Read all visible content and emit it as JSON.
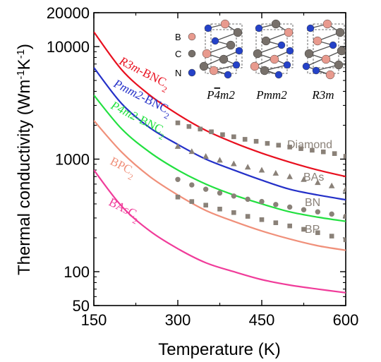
{
  "chart_data": {
    "type": "line",
    "xlabel": "Temperature (K)",
    "ylabel": "Thermal conductivity (Wm-1K-1)",
    "ylabel_parts": {
      "main": "Thermal conductivity (Wm",
      "exp1": "-1",
      "mid": "K",
      "exp2": "-1",
      "close": ")"
    },
    "xlim": [
      150,
      600
    ],
    "ylim": [
      50,
      20000
    ],
    "yscale": "log",
    "xticks": [
      150,
      300,
      450,
      600
    ],
    "xtick_labels": [
      "150",
      "300",
      "450",
      "600"
    ],
    "yticks": [
      50,
      100,
      1000,
      10000,
      20000
    ],
    "ytick_labels": [
      "50",
      "100",
      "1000",
      "10000",
      "20000"
    ],
    "grid": false,
    "series": [
      {
        "name": "R3m-BNC2",
        "label_italic": "R3m",
        "label_rest": "-BNC",
        "label_sub": "2",
        "color": "#e8101f",
        "style": "line",
        "x": [
          150,
          200,
          250,
          300,
          350,
          400,
          450,
          500,
          550,
          600
        ],
        "y": [
          13500,
          6200,
          3700,
          2500,
          1800,
          1400,
          1130,
          940,
          800,
          700
        ]
      },
      {
        "name": "Pmm2-BNC2",
        "label_italic": "Pmm2",
        "label_rest": "-BNC",
        "label_sub": "2",
        "color": "#2430c8",
        "style": "line",
        "x": [
          150,
          200,
          250,
          300,
          350,
          400,
          450,
          500,
          550,
          600
        ],
        "y": [
          6500,
          3100,
          1900,
          1350,
          1000,
          800,
          650,
          540,
          480,
          435
        ]
      },
      {
        "name": "P4m2-BNC2",
        "label_italic": "P4m2",
        "label_rest": "-BNC",
        "label_sub": "2",
        "color": "#22e040",
        "style": "line",
        "x": [
          150,
          200,
          250,
          300,
          350,
          400,
          450,
          500,
          550,
          600
        ],
        "y": [
          3700,
          1850,
          1150,
          800,
          600,
          480,
          400,
          340,
          305,
          280
        ]
      },
      {
        "name": "BPC2",
        "label_italic": "",
        "label_rest": "BPC",
        "label_sub": "2",
        "color": "#f0907a",
        "style": "line",
        "x": [
          150,
          200,
          250,
          300,
          350,
          400,
          450,
          500,
          550,
          600
        ],
        "y": [
          2200,
          1150,
          700,
          480,
          350,
          280,
          230,
          195,
          170,
          155
        ]
      },
      {
        "name": "BAsC2",
        "label_italic": "",
        "label_rest": "BAsC",
        "label_sub": "2",
        "color": "#f03c9a",
        "style": "line",
        "x": [
          150,
          200,
          250,
          300,
          350,
          400,
          450,
          500,
          550,
          600
        ],
        "y": [
          800,
          380,
          230,
          160,
          120,
          100,
          85,
          76,
          70,
          65
        ]
      },
      {
        "name": "Diamond",
        "label_italic": "",
        "label_rest": "Diamond",
        "label_sub": "",
        "color": "#8a8178",
        "style": "square",
        "x": [
          300,
          320,
          340,
          360,
          380,
          400,
          420,
          440,
          460,
          480,
          500,
          520,
          540,
          560,
          580,
          600
        ],
        "y": [
          2100,
          1950,
          1850,
          1750,
          1650,
          1580,
          1500,
          1440,
          1380,
          1330,
          1280,
          1240,
          1200,
          1160,
          1120,
          1060
        ]
      },
      {
        "name": "BAs",
        "label_italic": "",
        "label_rest": "BAs",
        "label_sub": "",
        "color": "#8a8178",
        "style": "triangle",
        "x": [
          300,
          325,
          350,
          375,
          400,
          425,
          450,
          475,
          500,
          525,
          550,
          575,
          600
        ],
        "y": [
          1300,
          1170,
          1060,
          980,
          910,
          850,
          800,
          750,
          700,
          660,
          620,
          580,
          540
        ]
      },
      {
        "name": "BN",
        "label_italic": "",
        "label_rest": "BN",
        "label_sub": "",
        "color": "#8a8178",
        "style": "circle",
        "x": [
          300,
          325,
          350,
          375,
          400,
          425,
          450,
          475,
          500,
          525,
          550,
          575,
          600
        ],
        "y": [
          660,
          590,
          540,
          500,
          470,
          440,
          420,
          395,
          375,
          355,
          340,
          325,
          310
        ]
      },
      {
        "name": "BP",
        "label_italic": "",
        "label_rest": "BP",
        "label_sub": "",
        "color": "#8a8178",
        "style": "square",
        "x": [
          300,
          325,
          350,
          375,
          400,
          425,
          450,
          475,
          500,
          525,
          550,
          575,
          600
        ],
        "y": [
          460,
          420,
          390,
          360,
          335,
          310,
          290,
          272,
          255,
          238,
          222,
          207,
          192
        ]
      }
    ],
    "inset": {
      "legend": [
        {
          "label": "B",
          "color": "#e89a8e"
        },
        {
          "label": "C",
          "color": "#77706a"
        },
        {
          "label": "N",
          "color": "#2542c8"
        }
      ],
      "structures": [
        {
          "prefix": "P",
          "bar": "4",
          "suffix": "m2"
        },
        {
          "prefix": "Pmm2",
          "bar": "",
          "suffix": ""
        },
        {
          "prefix": "R3m",
          "bar": "",
          "suffix": ""
        }
      ]
    }
  }
}
